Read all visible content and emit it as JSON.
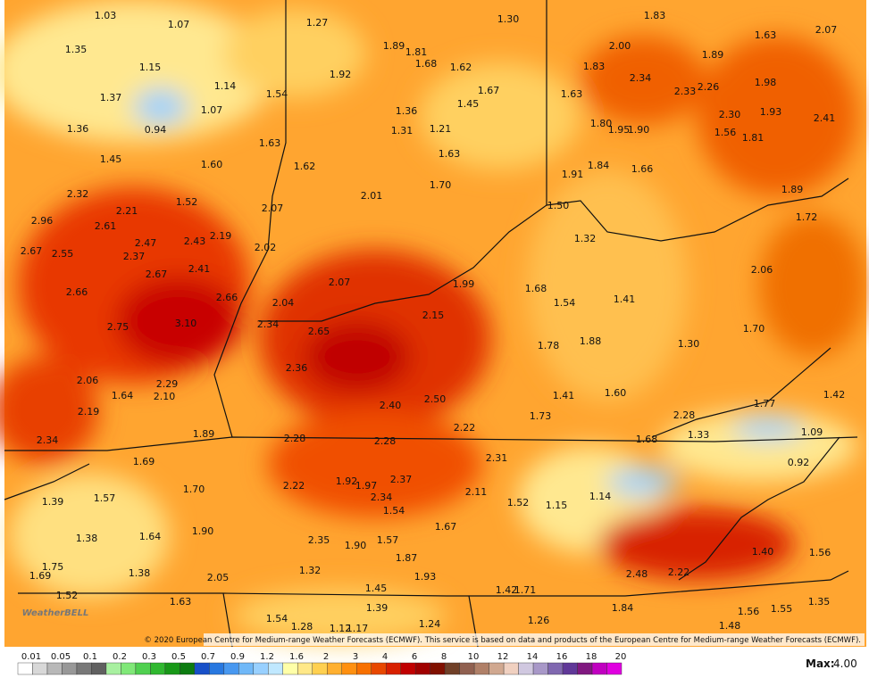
{
  "map": {
    "labels": [
      "1.03",
      "1.07",
      "1.27",
      "1.30",
      "1.83",
      "1.63",
      "2.07",
      "1.35",
      "1.15",
      "1.89",
      "1.81",
      "1.68",
      "1.62",
      "2.00",
      "1.89",
      "1.83",
      "1.37",
      "1.14",
      "1.54",
      "1.92",
      "1.67",
      "1.45",
      "1.63",
      "2.34",
      "2.33",
      "2.26",
      "1.98",
      "1.07",
      "1.36",
      "2.30",
      "1.93",
      "2.41",
      "1.36",
      "0.94",
      "1.31",
      "1.21",
      "1.80",
      "1.95",
      "1.90",
      "1.56",
      "1.81",
      "1.63",
      "1.45",
      "1.60",
      "1.62",
      "1.63",
      "1.84",
      "1.91",
      "1.66",
      "1.70",
      "1.89",
      "2.32",
      "2.01",
      "1.52",
      "2.21",
      "2.07",
      "1.50",
      "1.72",
      "2.96",
      "2.61",
      "2.19",
      "2.43",
      "2.47",
      "1.32",
      "2.67",
      "2.55",
      "2.37",
      "2.02",
      "2.41",
      "2.67",
      "2.06",
      "2.07",
      "1.99",
      "1.68",
      "2.66",
      "2.66",
      "1.54",
      "1.41",
      "2.04",
      "2.15",
      "3.10",
      "2.75",
      "2.34",
      "2.65",
      "1.70",
      "1.78",
      "1.88",
      "1.30",
      "2.36",
      "2.29",
      "2.06",
      "1.64",
      "2.10",
      "1.41",
      "1.60",
      "1.42",
      "2.50",
      "2.40",
      "1.77",
      "2.19",
      "1.73",
      "2.28",
      "2.22",
      "1.89",
      "1.09",
      "1.33",
      "1.68",
      "2.28",
      "2.28",
      "2.34",
      "2.31",
      "1.69",
      "0.92",
      "1.92",
      "1.97",
      "2.37",
      "2.22",
      "1.70",
      "2.11",
      "2.34",
      "1.14",
      "1.57",
      "1.39",
      "1.52",
      "1.15",
      "1.54",
      "1.67",
      "1.90",
      "1.64",
      "1.38",
      "2.35",
      "1.90",
      "1.57",
      "1.40",
      "1.56",
      "1.87",
      "1.75",
      "1.38",
      "1.32",
      "2.48",
      "2.22",
      "1.69",
      "2.05",
      "1.93",
      "1.52",
      "1.63",
      "1.45",
      "1.42",
      "1.71",
      "1.35",
      "1.39",
      "1.84",
      "1.56",
      "1.55",
      "1.54",
      "1.28",
      "1.12",
      "1.17",
      "1.24",
      "1.26",
      "1.48"
    ],
    "logo": "WeatherBELL",
    "copyright": "© 2020 European Centre for Medium-range Weather Forecasts (ECMWF). This service is based on data and products of the European Centre for Medium-range Weather Forecasts (ECMWF).",
    "legend": {
      "labels": [
        "0.01",
        "0.05",
        "0.1",
        "0.2",
        "0.3",
        "0.5",
        "0.7",
        "0.9",
        "1.2",
        "1.6",
        "2",
        "3",
        "4",
        "6",
        "8",
        "10",
        "12",
        "14",
        "16",
        "18",
        "20"
      ],
      "colors": [
        "#ffffff",
        "#d8d8d8",
        "#b8b8b8",
        "#989898",
        "#787878",
        "#606060",
        "#a8f0a0",
        "#80e878",
        "#50d050",
        "#30b830",
        "#189818",
        "#0c7c10",
        "#1850c8",
        "#2878e0",
        "#4898f0",
        "#70b8f8",
        "#98d0ff",
        "#c0e8ff",
        "#ffffa8",
        "#ffe888",
        "#ffd050",
        "#ffb030",
        "#ff9010",
        "#f87000",
        "#e84800",
        "#d82000",
        "#c00000",
        "#a00000",
        "#801000",
        "#704028",
        "#906050",
        "#b08068",
        "#d0a890",
        "#f0d0c0",
        "#d0c8e0",
        "#a898c8",
        "#8068b0",
        "#603898",
        "#801880",
        "#c000c0"
      ],
      "last_colors": [
        "#e000e0"
      ],
      "max_label": "Max:",
      "max_value": "4.00"
    }
  }
}
